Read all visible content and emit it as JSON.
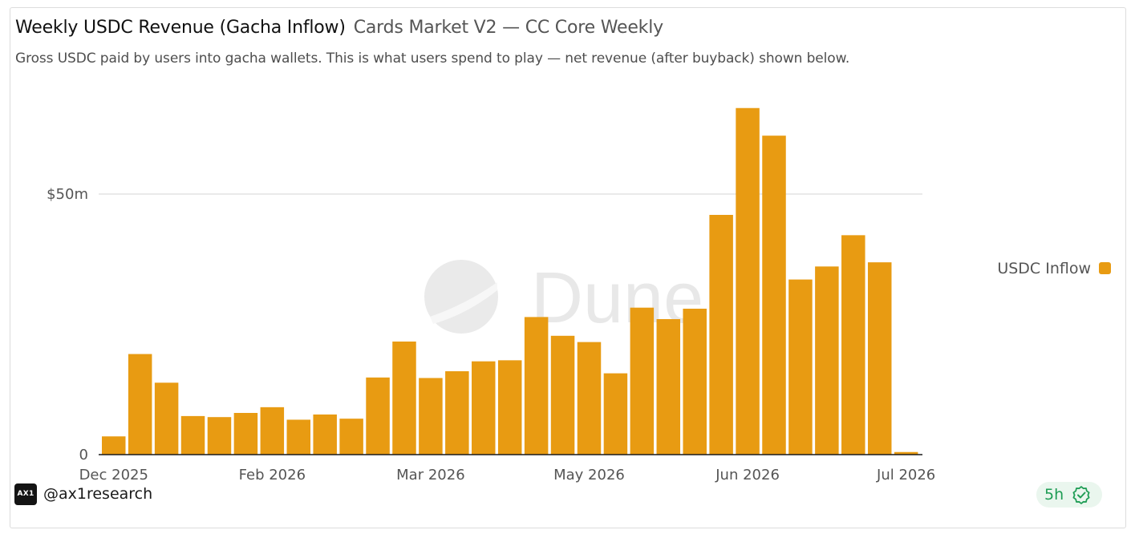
{
  "header": {
    "title": "Weekly USDC Revenue (Gacha Inflow)",
    "subtitle": "Cards Market V2 — CC Core Weekly",
    "description": "Gross USDC paid by users into gacha wallets. This is what users spend to play — net revenue (after buyback) shown below."
  },
  "watermark": {
    "text": "Dune"
  },
  "chart_data": {
    "type": "bar",
    "ylim": [
      0,
      66
    ],
    "yticks": [
      {
        "value": 0,
        "label": "0"
      },
      {
        "value": 50,
        "label": "$50m"
      }
    ],
    "xticks": [
      {
        "at": 0,
        "label": "Dec 2025"
      },
      {
        "at": 6,
        "label": "Feb 2026"
      },
      {
        "at": 12,
        "label": "Mar 2026"
      },
      {
        "at": 18,
        "label": "May 2026"
      },
      {
        "at": 24,
        "label": "Jun 2026"
      },
      {
        "at": 30,
        "label": "Jul 2026"
      }
    ],
    "series": [
      {
        "name": "USDC Inflow",
        "color": "#e89b12",
        "values": [
          3.5,
          19.3,
          13.8,
          7.4,
          7.2,
          8.0,
          9.1,
          6.7,
          7.7,
          6.9,
          14.8,
          21.7,
          14.7,
          16.0,
          17.9,
          18.1,
          26.4,
          22.8,
          21.6,
          15.6,
          28.2,
          26.0,
          28.0,
          46.0,
          66.5,
          61.2,
          33.6,
          36.1,
          42.1,
          36.9,
          0.5
        ]
      }
    ],
    "legend_position": "right",
    "grid": true
  },
  "footer": {
    "logo_text": "AX1",
    "handle": "@ax1research",
    "freshness": "5h",
    "freshness_icon": "verified-badge-icon"
  }
}
